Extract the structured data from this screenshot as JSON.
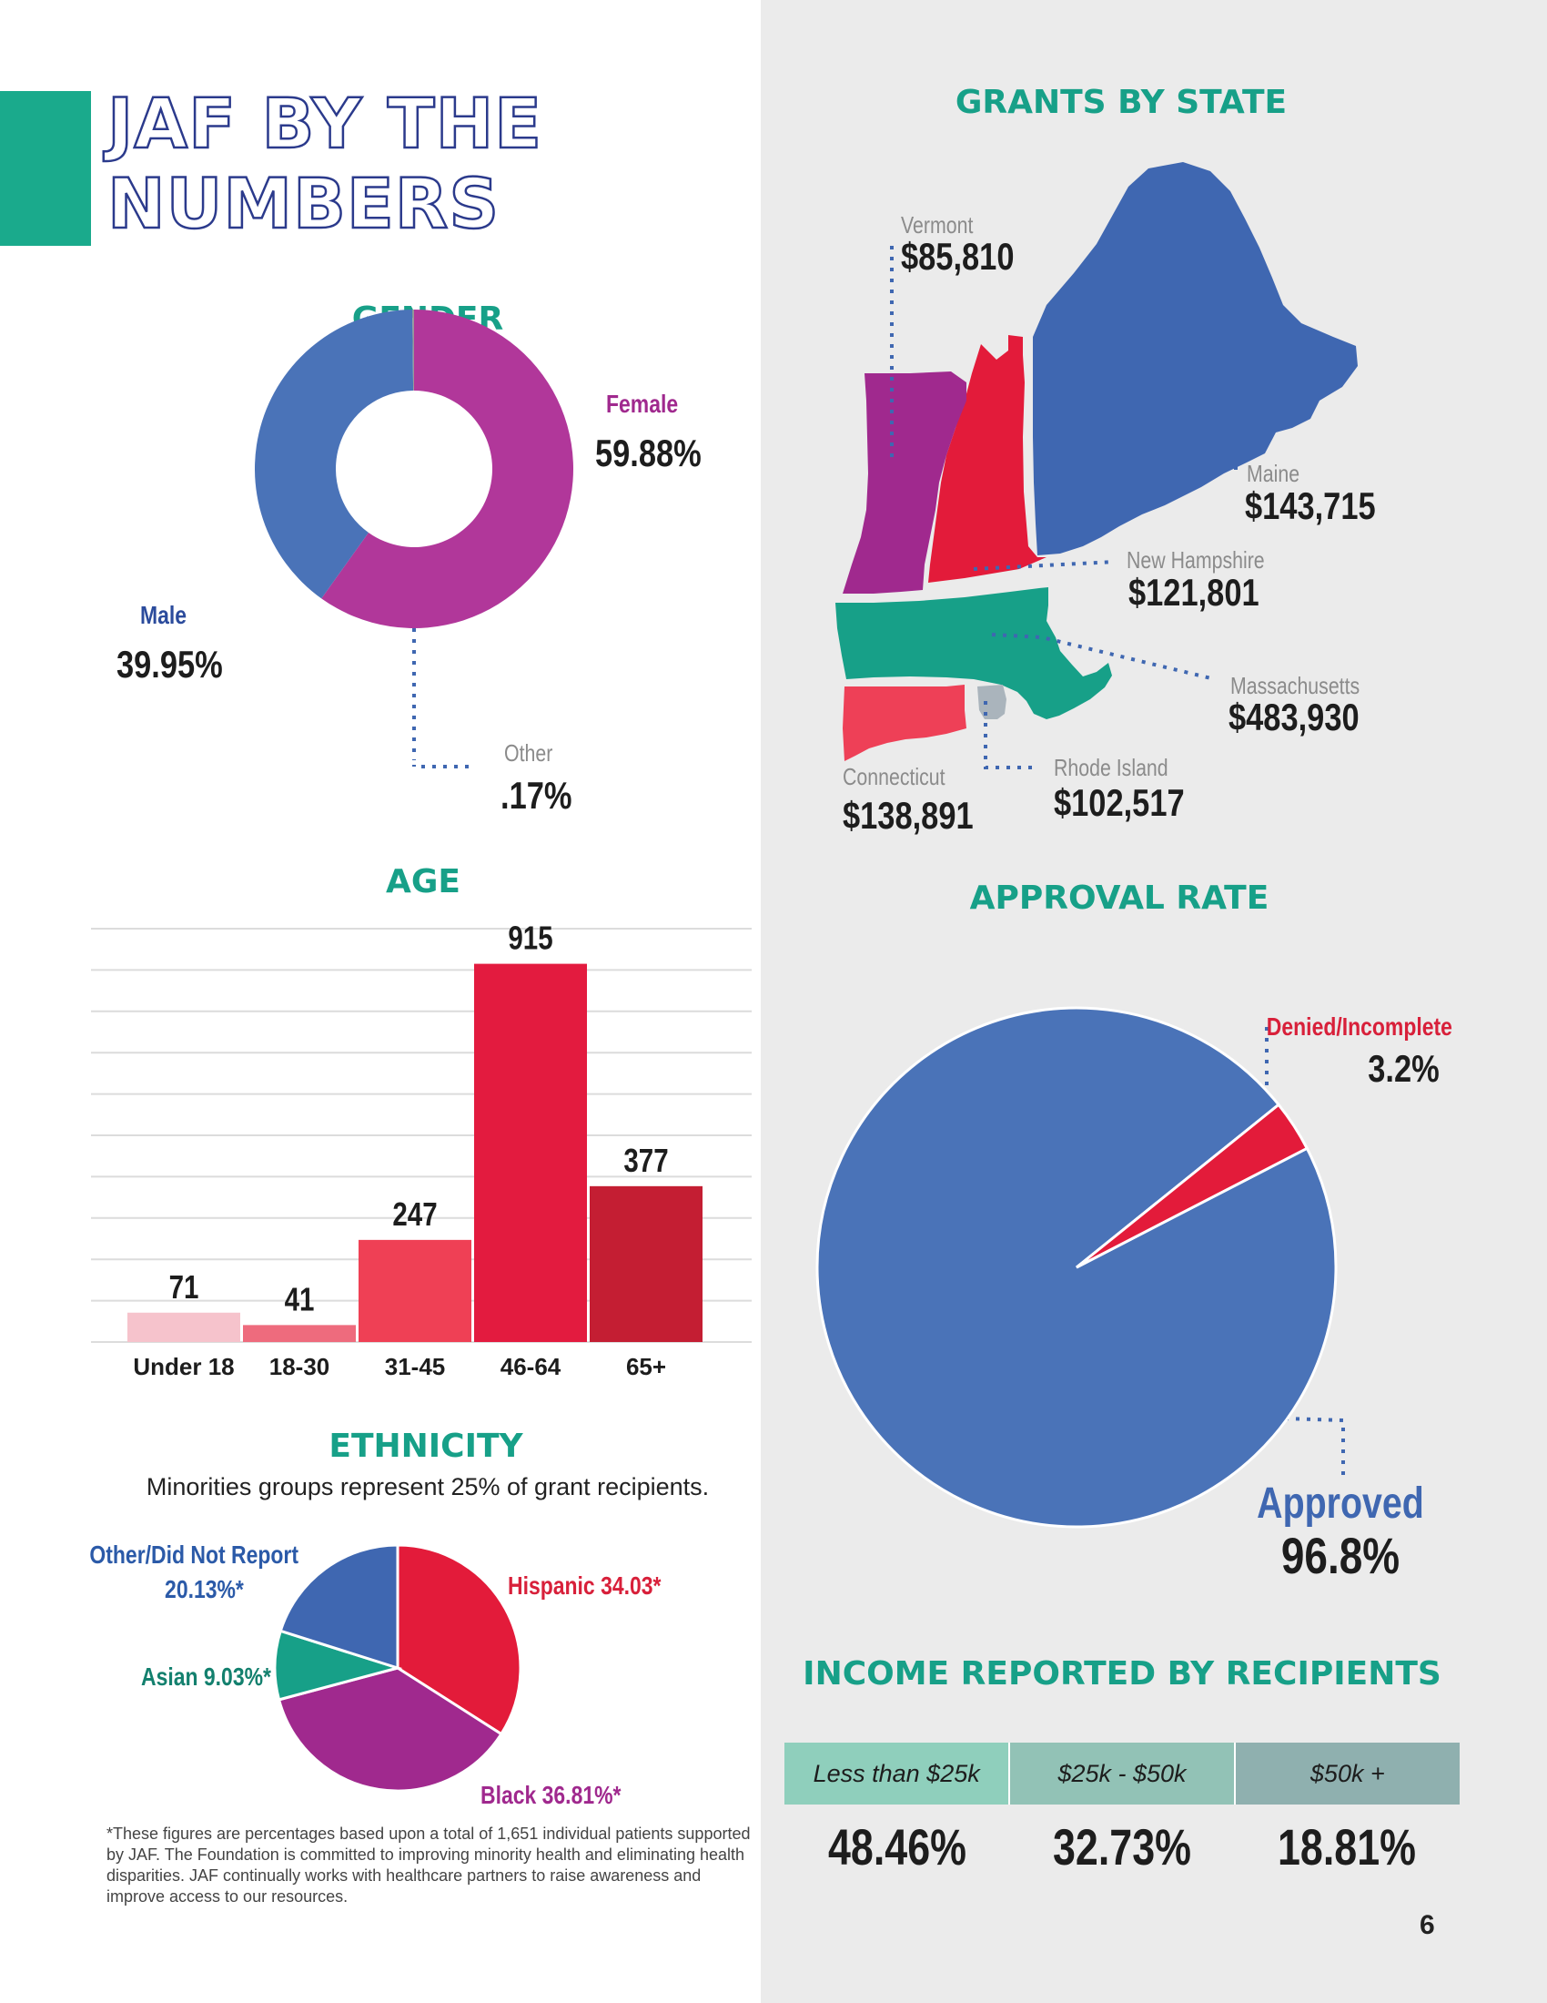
{
  "page": {
    "title_lines": [
      "JAF BY THE",
      "NUMBERS"
    ],
    "page_number": "6",
    "colors": {
      "accent": "#1aaa8c",
      "title_outline": "#2b3a8c",
      "panel": "#ebebeb"
    }
  },
  "gender": {
    "title": "GENDER",
    "female_label": "Female",
    "female_value": "59.88%",
    "male_label": "Male",
    "male_value": "39.95%",
    "other_label": "Other",
    "other_value": ".17%"
  },
  "age": {
    "title": "AGE",
    "bar_labels": [
      "71",
      "41",
      "247",
      "915",
      "377"
    ]
  },
  "ethnicity": {
    "title": "ETHNICITY",
    "subtitle": "Minorities groups represent 25% of grant recipients.",
    "other_label_line1": "Other/Did Not Report",
    "other_label_line2": "20.13%*",
    "hispanic_label": "Hispanic 34.03*",
    "asian_label": "Asian 9.03%*",
    "black_label": "Black 36.81%*",
    "footnote": "*These figures are percentages based upon a total of 1,651 individual patients supported by JAF. The Foundation is committed to improving minority health and eliminating health disparities.  JAF continually works with healthcare partners to raise awareness and improve access to our resources."
  },
  "grants": {
    "title": "GRANTS BY STATE",
    "states": {
      "vermont": {
        "name": "Vermont",
        "amount": "$85,810",
        "color": "#a0298e"
      },
      "maine": {
        "name": "Maine",
        "amount": "$143,715",
        "color": "#3f67b1"
      },
      "new_hampshire": {
        "name": "New Hampshire",
        "amount": "$121,801",
        "color": "#e31b3a"
      },
      "massachusetts": {
        "name": "Massachusetts",
        "amount": "$483,930",
        "color": "#17a088"
      },
      "connecticut": {
        "name": "Connecticut",
        "amount": "$138,891",
        "color": "#ee4057"
      },
      "rhode_island": {
        "name": "Rhode Island",
        "amount": "$102,517",
        "color": "#aab4bc"
      }
    }
  },
  "approval": {
    "title": "APPROVAL RATE",
    "denied_label": "Denied/Incomplete",
    "denied_value": "3.2%",
    "approved_label": "Approved",
    "approved_value": "96.8%"
  },
  "income": {
    "title": "INCOME REPORTED BY RECIPIENTS",
    "columns": [
      {
        "header": "Less than $25k",
        "value": "48.46%",
        "color": "#8fcfbc"
      },
      {
        "header": "$25k - $50k",
        "value": "32.73%",
        "color": "#92c2b6"
      },
      {
        "header": "$50k +",
        "value": "18.81%",
        "color": "#8fb0af"
      }
    ]
  },
  "chart_data": [
    {
      "type": "pie",
      "variant": "donut",
      "title": "GENDER",
      "labels": [
        "Female",
        "Male",
        "Other"
      ],
      "values": [
        59.88,
        39.95,
        0.17
      ],
      "colors": [
        "#b1379a",
        "#4a73b8",
        "#999999"
      ]
    },
    {
      "type": "bar",
      "title": "AGE",
      "categories": [
        "Under 18",
        "18-30",
        "31-45",
        "46-64",
        "65+"
      ],
      "values": [
        71,
        41,
        247,
        915,
        377
      ],
      "colors": [
        "#f6c3cc",
        "#ee6b7d",
        "#ef4055",
        "#e31b3f",
        "#c41e33"
      ],
      "ylim": [
        0,
        1000
      ],
      "grid": true,
      "legend": "none"
    },
    {
      "type": "pie",
      "title": "ETHNICITY",
      "labels": [
        "Hispanic",
        "Black",
        "Asian",
        "Other/Did Not Report"
      ],
      "values": [
        34.03,
        36.81,
        9.03,
        20.13
      ],
      "colors": [
        "#e31b3a",
        "#a0298e",
        "#17a088",
        "#3f67b1"
      ]
    },
    {
      "type": "pie",
      "title": "APPROVAL RATE",
      "labels": [
        "Approved",
        "Denied/Incomplete"
      ],
      "values": [
        96.8,
        3.2
      ],
      "colors": [
        "#4a73b8",
        "#e31b3a"
      ]
    }
  ]
}
